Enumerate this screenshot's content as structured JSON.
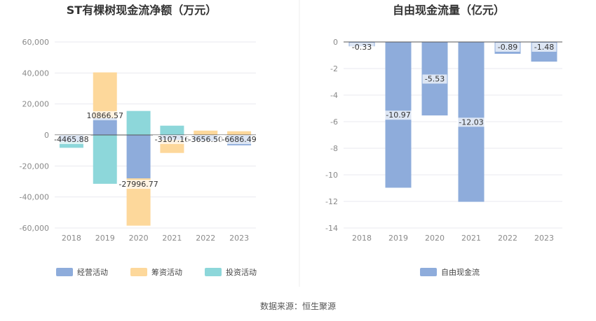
{
  "chart_data": [
    {
      "type": "bar",
      "stacked": true,
      "title": "ST有棵树现金流净额（万元）",
      "categories": [
        "2018",
        "2019",
        "2020",
        "2021",
        "2022",
        "2023"
      ],
      "series": [
        {
          "name": "经营活动",
          "color": "#8eacdb",
          "values": [
            -4465.88,
            10866.57,
            -27996.77,
            -3107.16,
            -3656.5,
            -6686.49
          ]
        },
        {
          "name": "筹资活动",
          "color": "#fdd89b",
          "values": [
            0,
            29500,
            -30500,
            -8500,
            2800,
            2400
          ]
        },
        {
          "name": "投资活动",
          "color": "#8dd7da",
          "values": [
            -3800,
            -31500,
            15500,
            6000,
            0,
            0
          ]
        }
      ],
      "labels": [
        "-4465.88",
        "10866.57",
        "-27996.77",
        "-3107.16",
        "-3656.50",
        "-6686.49"
      ],
      "ylim": [
        -60000,
        60000
      ],
      "yticks": [
        "60,000",
        "40,000",
        "20,000",
        "0",
        "-20,000",
        "-40,000",
        "-60,000"
      ],
      "grid": true,
      "legend_position": "bottom"
    },
    {
      "type": "bar",
      "title": "自由现金流量（亿元）",
      "categories": [
        "2018",
        "2019",
        "2020",
        "2021",
        "2022",
        "2023"
      ],
      "series": [
        {
          "name": "自由现金流",
          "color": "#8eacdb",
          "values": [
            -0.33,
            -10.97,
            -5.53,
            -12.03,
            -0.89,
            -1.48
          ]
        }
      ],
      "labels": [
        "-0.33",
        "-10.97",
        "-5.53",
        "-12.03",
        "-0.89",
        "-1.48"
      ],
      "ylim": [
        -14,
        0
      ],
      "yticks": [
        "0",
        "-2",
        "-4",
        "-6",
        "-8",
        "-10",
        "-12",
        "-14"
      ],
      "grid": true,
      "legend_position": "bottom"
    }
  ],
  "source_text": "数据来源：恒生聚源"
}
